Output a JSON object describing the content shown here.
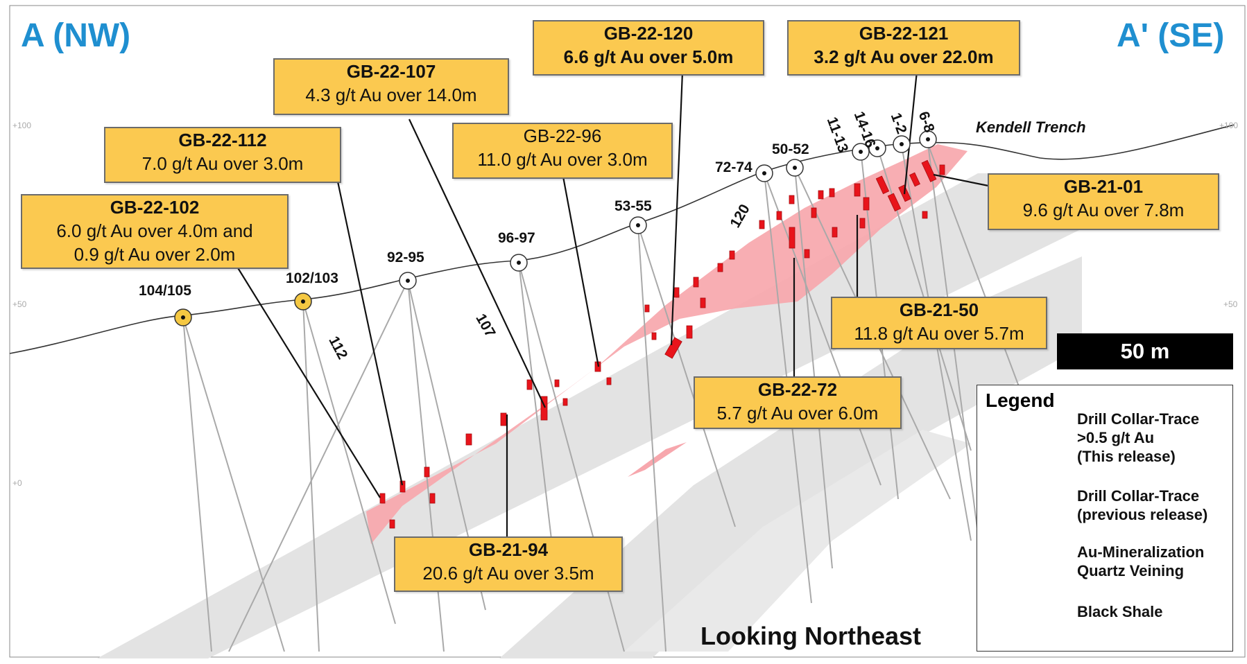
{
  "section": {
    "left_label": "A (NW)",
    "right_label": "A' (SE)",
    "view_label": "Looking Northeast",
    "trench_label": "Kendell Trench",
    "scale_label": "50 m",
    "elevation_labels": {
      "left_top": "+100",
      "left_mid": "+50",
      "left_low": "+0",
      "right_top": "+100",
      "right_mid": "+50"
    }
  },
  "callouts": [
    {
      "id": "gb-22-102",
      "title": "GB-22-102",
      "lines": [
        "6.0 g/t Au over 4.0m and",
        "0.9 g/t Au over 2.0m"
      ]
    },
    {
      "id": "gb-22-112",
      "title": "GB-22-112",
      "lines": [
        "7.0 g/t Au over 3.0m"
      ]
    },
    {
      "id": "gb-22-107",
      "title": "GB-22-107",
      "lines": [
        "4.3 g/t Au over 14.0m"
      ]
    },
    {
      "id": "gb-22-96",
      "title": "GB-22-96",
      "lines": [
        "11.0 g/t Au over 3.0m"
      ]
    },
    {
      "id": "gb-22-120",
      "title": "GB-22-120",
      "lines": [
        "6.6 g/t Au over 5.0m"
      ]
    },
    {
      "id": "gb-22-121",
      "title": "GB-22-121",
      "lines": [
        "3.2 g/t Au over 22.0m"
      ]
    },
    {
      "id": "gb-21-01",
      "title": "GB-21-01",
      "lines": [
        "9.6 g/t Au over 7.8m"
      ]
    },
    {
      "id": "gb-21-50",
      "title": "GB-21-50",
      "lines": [
        "11.8 g/t Au over 5.7m"
      ]
    },
    {
      "id": "gb-22-72",
      "title": "GB-22-72",
      "lines": [
        "5.7 g/t Au over 6.0m"
      ]
    },
    {
      "id": "gb-21-94",
      "title": "GB-21-94",
      "lines": [
        "20.6 g/t Au over 3.5m"
      ]
    }
  ],
  "collars": [
    {
      "label": "104/105",
      "type": "this-release"
    },
    {
      "label": "102/103",
      "type": "this-release"
    },
    {
      "label": "92-95",
      "type": "previous-release"
    },
    {
      "label": "96-97",
      "type": "previous-release"
    },
    {
      "label": "53-55",
      "type": "previous-release"
    },
    {
      "label": "72-74",
      "type": "previous-release"
    },
    {
      "label": "50-52",
      "type": "previous-release"
    },
    {
      "label": "11-13",
      "type": "previous-release"
    },
    {
      "label": "14-16",
      "type": "previous-release"
    },
    {
      "label": "1-2",
      "type": "previous-release"
    },
    {
      "label": "6-8",
      "type": "previous-release"
    }
  ],
  "hole_labels": [
    "112",
    "107",
    "120"
  ],
  "legend": {
    "title": "Legend",
    "items": [
      {
        "label_lines": [
          "Drill Collar-Trace",
          ">0.5 g/t Au",
          "(This release)"
        ],
        "symbol": "yellow-collar-trace"
      },
      {
        "label_lines": [
          "Drill Collar-Trace",
          "(previous release)"
        ],
        "symbol": "white-collar-trace"
      },
      {
        "label_lines": [
          "Au-Mineralization",
          "Quartz Veining"
        ],
        "symbol": "pink-zone"
      },
      {
        "label_lines": [
          "Black Shale"
        ],
        "symbol": "grey-zone"
      }
    ]
  },
  "colors": {
    "title_blue": "#1f8fd0",
    "callout_fill": "#fbc950",
    "mineralization_pink": "#f7a7ad",
    "intercept_red": "#e8141b",
    "shale_grey": "#dedede",
    "collar_yellow": "#f5c842"
  }
}
